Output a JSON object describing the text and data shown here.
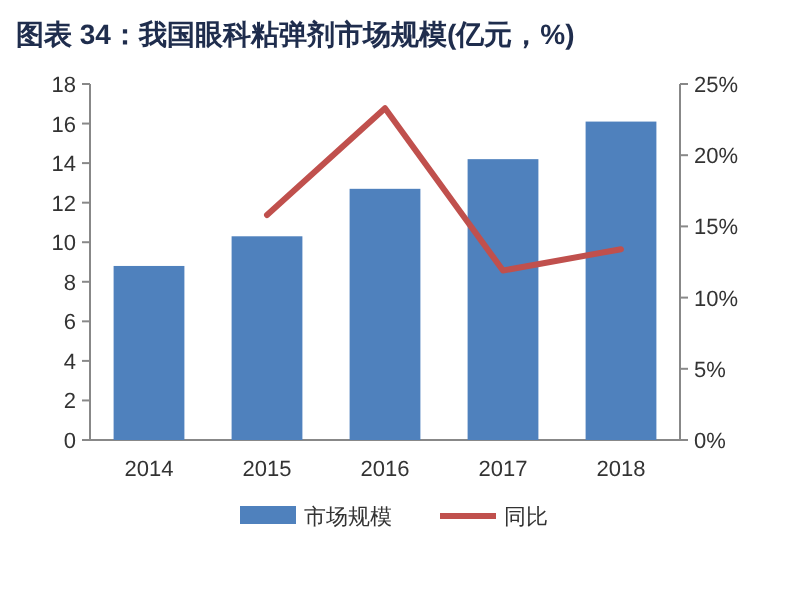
{
  "chart_data": {
    "type": "bar",
    "title": "图表 34：我国眼科粘弹剂市场规模(亿元，%)",
    "categories": [
      "2014",
      "2015",
      "2016",
      "2017",
      "2018"
    ],
    "series": [
      {
        "name": "市场规模",
        "color": "#4f81bd",
        "values": [
          8.8,
          10.3,
          12.7,
          14.2,
          16.1
        ]
      },
      {
        "name": "同比",
        "color": "#c0504d",
        "type": "line",
        "axis": "y2",
        "values": [
          null,
          15.8,
          23.3,
          11.9,
          13.4
        ]
      }
    ],
    "ylim": [
      0,
      18
    ],
    "yticks": [
      0,
      2,
      4,
      6,
      8,
      10,
      12,
      14,
      16,
      18
    ],
    "y2lim": [
      0,
      25
    ],
    "y2ticks": [
      {
        "value": 0,
        "label": "0%"
      },
      {
        "value": 5,
        "label": "5%"
      },
      {
        "value": 10,
        "label": "10%"
      },
      {
        "value": 15,
        "label": "15%"
      },
      {
        "value": 20,
        "label": "20%"
      },
      {
        "value": 25,
        "label": "25%"
      }
    ],
    "legend": "bottom"
  }
}
